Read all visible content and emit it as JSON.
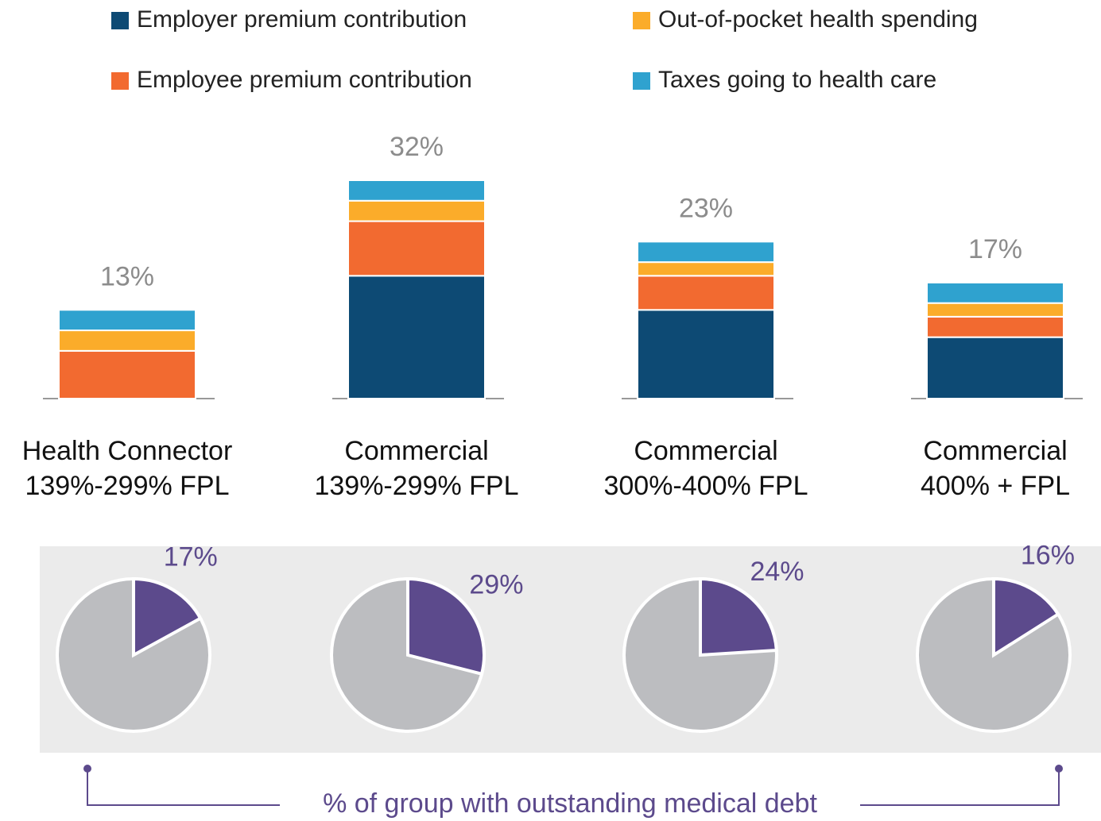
{
  "chart_data": [
    {
      "type": "stacked_bar",
      "categories": [
        [
          "Health Connector",
          "139%-299% FPL"
        ],
        [
          "Commercial",
          "139%-299% FPL"
        ],
        [
          "Commercial",
          "300%-400% FPL"
        ],
        [
          "Commercial",
          "400% + FPL"
        ]
      ],
      "series": [
        {
          "name": "Employer premium contribution",
          "color": "#0d4a74",
          "values": [
            0,
            18,
            13,
            9
          ]
        },
        {
          "name": "Employee premium contribution",
          "color": "#f26a30",
          "values": [
            7,
            8,
            5,
            3
          ]
        },
        {
          "name": "Out-of-pocket health spending",
          "color": "#fbac2a",
          "values": [
            3,
            3,
            2,
            2
          ]
        },
        {
          "name": "Taxes going to health care",
          "color": "#2fa2cf",
          "values": [
            3,
            3,
            3,
            3
          ]
        }
      ],
      "totals": [
        13,
        32,
        23,
        17
      ],
      "total_labels": [
        "13%",
        "32%",
        "23%",
        "17%"
      ],
      "total_label_color": "#8c8c8c"
    },
    {
      "type": "pie",
      "title": "% of group with outstanding medical debt",
      "values": [
        17,
        29,
        24,
        16
      ],
      "value_labels": [
        "17%",
        "29%",
        "24%",
        "16%"
      ],
      "color": "#5c4a8c",
      "rest_color": "#bcbdc0"
    }
  ]
}
